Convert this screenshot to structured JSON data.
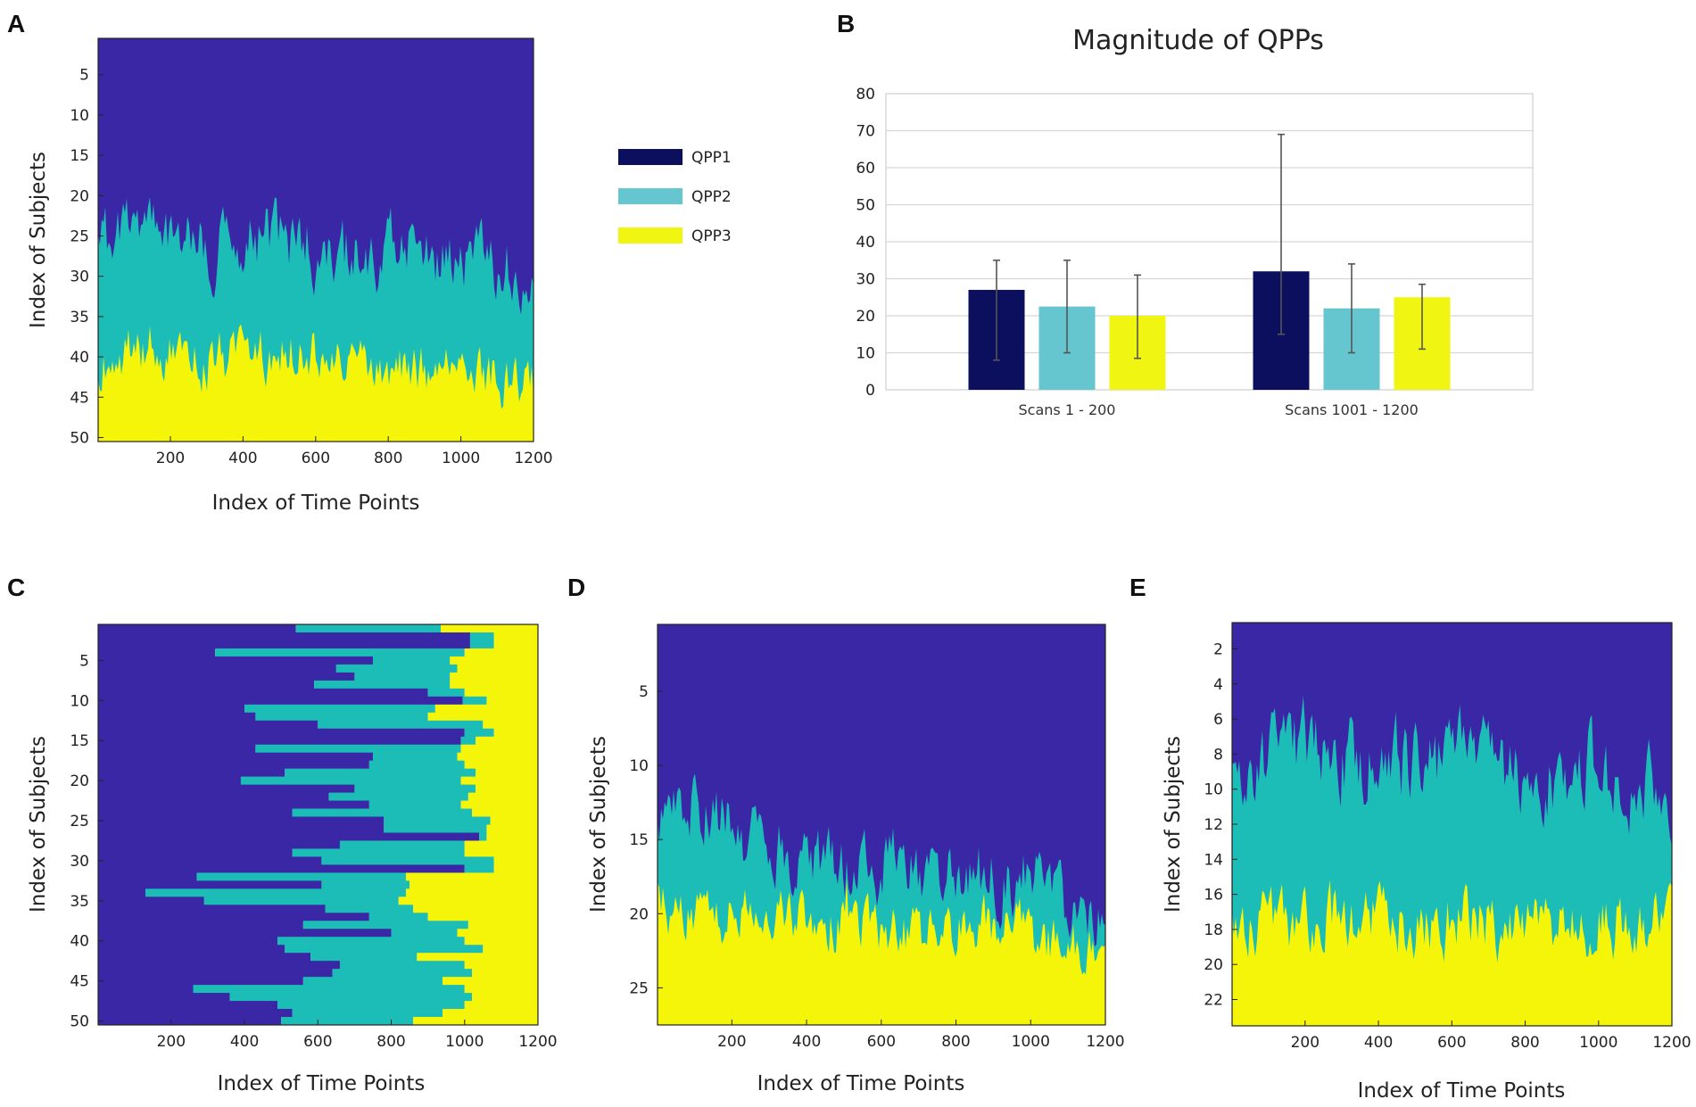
{
  "colors": {
    "qpp1_heat": "#3a27a6",
    "qpp2_heat": "#1bbdb6",
    "qpp3_heat": "#f5f50a",
    "qpp1_bar": "#0c0f5e",
    "qpp2_bar": "#66c6d0",
    "qpp3_bar": "#f0f512"
  },
  "legend": {
    "items": [
      {
        "label": "QPP1",
        "color": "#0c0f5e"
      },
      {
        "label": "QPP2",
        "color": "#66c6d0"
      },
      {
        "label": "QPP3",
        "color": "#f0f512"
      }
    ]
  },
  "panels": {
    "A": {
      "letter": "A",
      "xlabel": "Index of Time Points",
      "ylabel": "Index of Subjects",
      "xticks": [
        200,
        400,
        600,
        800,
        1000,
        1200
      ],
      "yticks": [
        5,
        10,
        15,
        20,
        25,
        30,
        35,
        40,
        45,
        50
      ]
    },
    "C": {
      "letter": "C",
      "xlabel": "Index of Time Points",
      "ylabel": "Index of Subjects",
      "xticks": [
        200,
        400,
        600,
        800,
        1000,
        1200
      ],
      "yticks": [
        5,
        10,
        15,
        20,
        25,
        30,
        35,
        40,
        45,
        50
      ]
    },
    "D": {
      "letter": "D",
      "xlabel": "Index of Time Points",
      "ylabel": "Index of Subjects",
      "xticks": [
        200,
        400,
        600,
        800,
        1000,
        1200
      ],
      "yticks": [
        5,
        10,
        15,
        20,
        25
      ]
    },
    "E": {
      "letter": "E",
      "xlabel": "Index of Time Points",
      "ylabel": "Index of Subjects",
      "xticks": [
        200,
        400,
        600,
        800,
        1000,
        1200
      ],
      "yticks": [
        2,
        4,
        6,
        8,
        10,
        12,
        14,
        16,
        18,
        20,
        22
      ]
    }
  },
  "chart_data": [
    {
      "panel": "A",
      "type": "heatmap",
      "xlabel": "Index of Time Points",
      "ylabel": "Index of Subjects",
      "xlim": [
        1,
        1200
      ],
      "ylim": [
        1,
        50
      ],
      "categories": [
        "QPP1",
        "QPP2",
        "QPP3"
      ],
      "mean_boundary_qpp1_qpp2": [
        27,
        24,
        25,
        27,
        26,
        26,
        28,
        28,
        27,
        28,
        29,
        30
      ],
      "mean_boundary_qpp2_qpp3": [
        41,
        39,
        40,
        41,
        40,
        40,
        41,
        42,
        42,
        43,
        43,
        44
      ]
    },
    {
      "panel": "B",
      "type": "bar",
      "title": "Magnitude of QPPs",
      "categories": [
        "Scans 1 - 200",
        "Scans 1001 - 1200"
      ],
      "series": [
        {
          "name": "QPP1",
          "values": [
            27,
            32
          ],
          "err_low": [
            8,
            15
          ],
          "err_high": [
            35,
            69
          ]
        },
        {
          "name": "QPP2",
          "values": [
            22.5,
            22
          ],
          "err_low": [
            10,
            10
          ],
          "err_high": [
            35,
            34
          ]
        },
        {
          "name": "QPP3",
          "values": [
            20,
            25
          ],
          "err_low": [
            8.5,
            11
          ],
          "err_high": [
            31,
            28.5
          ]
        }
      ],
      "ylim": [
        0,
        80
      ],
      "yticks": [
        0,
        10,
        20,
        30,
        40,
        50,
        60,
        70,
        80
      ],
      "legend": "right"
    },
    {
      "panel": "C",
      "type": "heatmap",
      "xlabel": "Index of Time Points",
      "ylabel": "Index of Subjects",
      "xlim": [
        1,
        1200
      ],
      "ylim": [
        1,
        50
      ],
      "categories": [
        "QPP1",
        "QPP2",
        "QPP3"
      ],
      "qpp1_end": [
        540,
        1015,
        1015,
        320,
        750,
        650,
        700,
        590,
        900,
        995,
        400,
        430,
        600,
        1000,
        990,
        430,
        750,
        740,
        510,
        390,
        700,
        630,
        740,
        530,
        780,
        780,
        1040,
        660,
        530,
        610,
        1000,
        270,
        610,
        130,
        290,
        620,
        740,
        560,
        800,
        490,
        510,
        580,
        660,
        640,
        560,
        260,
        360,
        490,
        530,
        500
      ],
      "qpp2_end": [
        935,
        1080,
        1080,
        1000,
        960,
        980,
        960,
        960,
        1000,
        1060,
        920,
        900,
        1050,
        1080,
        1030,
        990,
        980,
        1000,
        1030,
        990,
        1030,
        1010,
        990,
        1020,
        1070,
        1060,
        1060,
        1000,
        1000,
        1080,
        1080,
        840,
        850,
        840,
        820,
        860,
        900,
        1010,
        980,
        1000,
        1050,
        870,
        1000,
        1020,
        940,
        1000,
        1020,
        1000,
        940,
        860
      ]
    },
    {
      "panel": "D",
      "type": "heatmap",
      "xlabel": "Index of Time Points",
      "ylabel": "Index of Subjects",
      "xlim": [
        1,
        1200
      ],
      "ylim": [
        1,
        27
      ],
      "categories": [
        "QPP1",
        "QPP2",
        "QPP3"
      ],
      "mean_boundary_qpp1_qpp2": [
        15,
        13,
        15,
        16,
        17,
        17,
        17,
        18,
        18,
        18,
        20,
        21
      ],
      "mean_boundary_qpp2_qpp3": [
        20,
        20,
        21,
        21,
        21,
        21,
        22,
        22,
        21,
        22,
        23,
        23
      ]
    },
    {
      "panel": "E",
      "type": "heatmap",
      "xlabel": "Index of Time Points",
      "ylabel": "Index of Subjects",
      "xlim": [
        1,
        1200
      ],
      "ylim": [
        1,
        23
      ],
      "categories": [
        "QPP1",
        "QPP2",
        "QPP3"
      ],
      "mean_boundary_qpp1_qpp2": [
        10,
        9,
        8,
        9,
        9,
        9,
        9,
        9,
        10,
        9,
        10,
        10
      ],
      "mean_boundary_qpp2_qpp3": [
        18,
        18,
        18,
        18,
        18,
        18,
        18,
        18,
        18,
        18,
        18,
        18
      ]
    }
  ]
}
